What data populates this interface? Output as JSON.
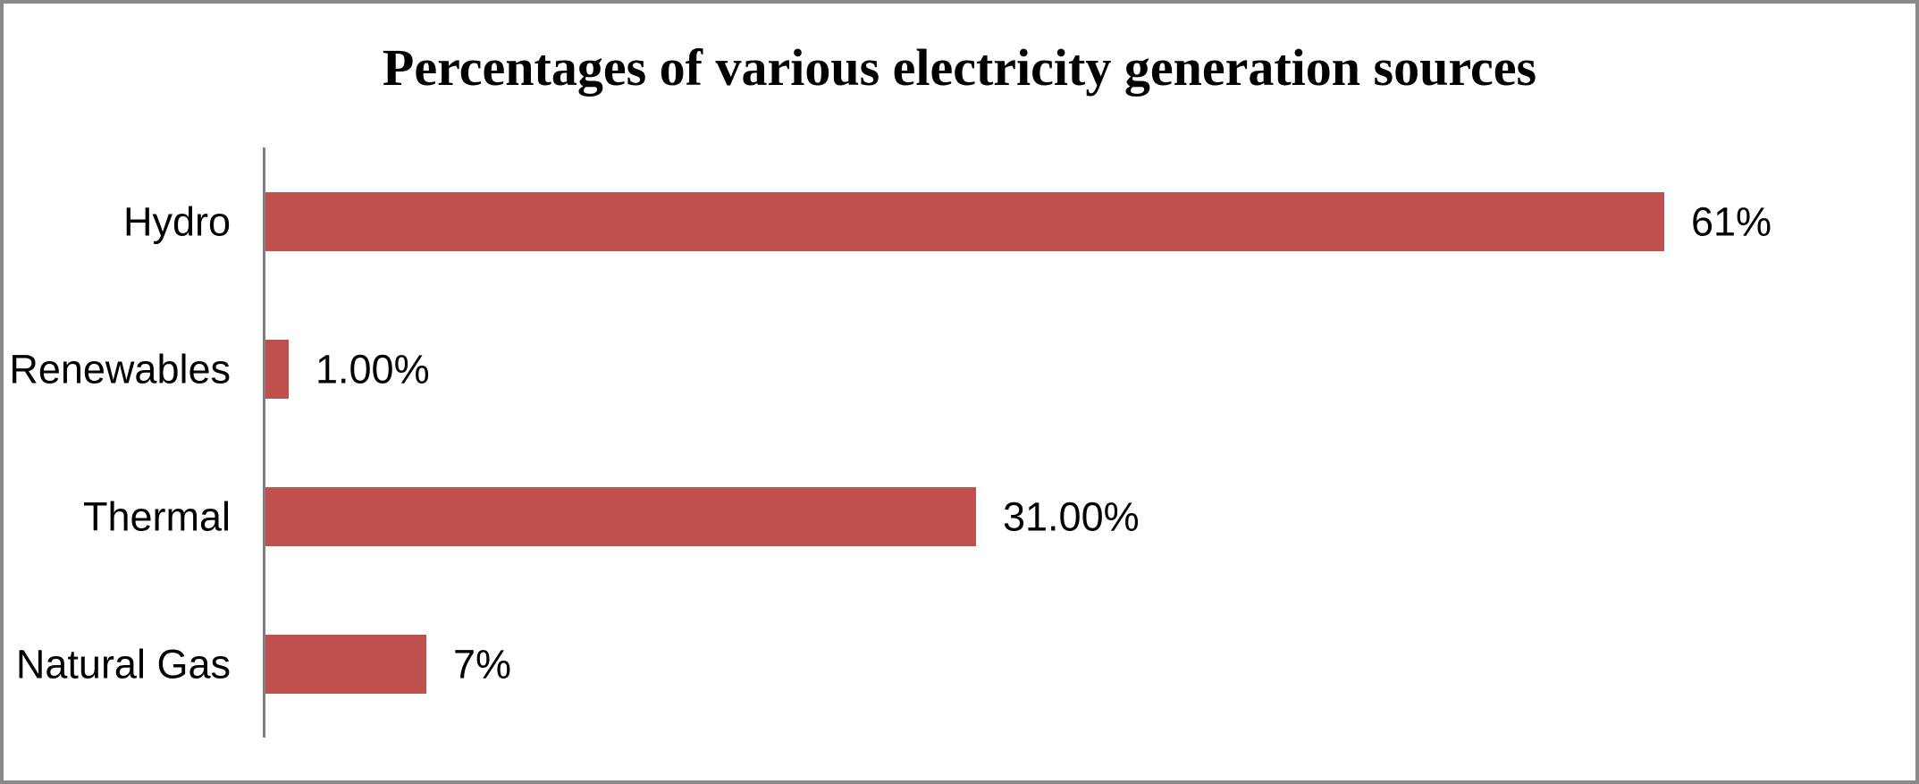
{
  "chart_data": {
    "type": "bar",
    "orientation": "horizontal",
    "title": "Percentages of various electricity generation sources",
    "categories": [
      "Hydro",
      "Renewables",
      "Thermal",
      "Natural Gas"
    ],
    "values": [
      61,
      1,
      31,
      7
    ],
    "value_labels": [
      "61%",
      "1.00%",
      "31.00%",
      "7%"
    ],
    "xlabel": "",
    "ylabel": "",
    "xlim": [
      0,
      70
    ],
    "grid": false,
    "legend": "none",
    "bar_color": "#C0504D",
    "axis_line_color": "#808080",
    "text_color": "#000000",
    "canvas_border_color": "#898989",
    "background": "#FFFFFF"
  }
}
